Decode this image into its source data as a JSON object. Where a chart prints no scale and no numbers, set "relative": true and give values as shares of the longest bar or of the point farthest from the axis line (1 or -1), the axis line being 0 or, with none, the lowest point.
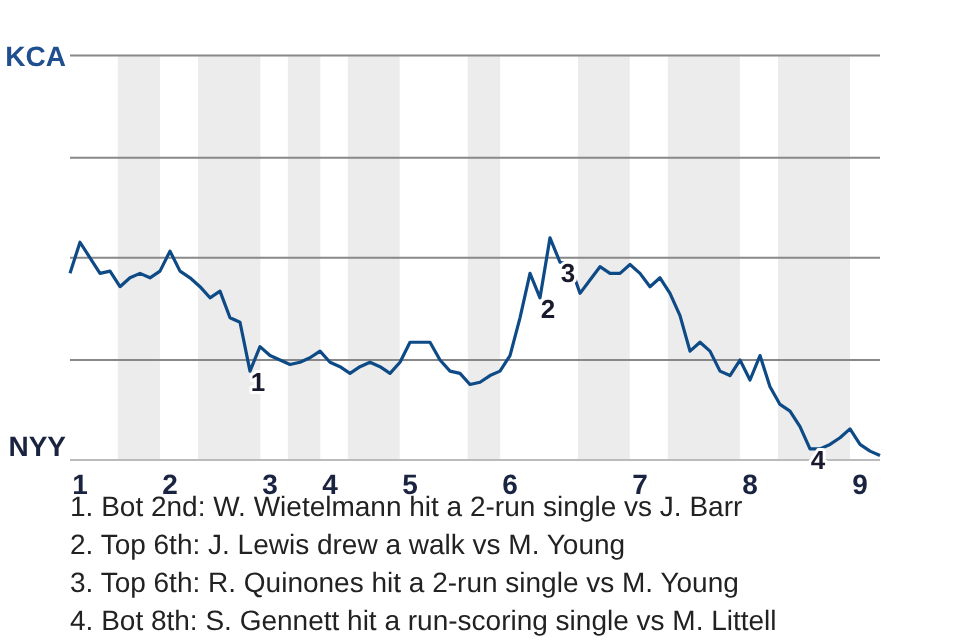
{
  "chart_data": {
    "type": "line",
    "relative": true,
    "categories": [
      null,
      "1",
      null,
      null,
      null,
      null,
      null,
      null,
      null,
      null,
      "2",
      null,
      null,
      null,
      null,
      null,
      null,
      null,
      null,
      null,
      "3",
      null,
      null,
      null,
      null,
      null,
      "4",
      null,
      null,
      null,
      null,
      null,
      null,
      null,
      "5",
      null,
      null,
      null,
      null,
      null,
      null,
      null,
      null,
      null,
      "6",
      null,
      null,
      null,
      null,
      null,
      null,
      null,
      null,
      null,
      null,
      null,
      null,
      "7",
      null,
      null,
      null,
      null,
      null,
      null,
      null,
      null,
      null,
      null,
      "8",
      null,
      null,
      null,
      null,
      null,
      null,
      null,
      null,
      null,
      null,
      "9",
      null,
      null
    ],
    "marker": "none",
    "line_style": "solid",
    "ref_lines": [
      {
        "axis": "y",
        "value": 0.45,
        "color": "#888888"
      },
      {
        "axis": "y",
        "value": 0.91,
        "color": "#888888"
      },
      {
        "axis": "y",
        "value": 1.36,
        "color": "#888888"
      },
      {
        "axis": "y",
        "value": 1.82,
        "color": "#888888"
      }
    ],
    "series": [
      {
        "color": "#0d4a86",
        "values": [
          0.84,
          0.98,
          0.91,
          0.84,
          0.85,
          0.78,
          0.82,
          0.84,
          0.82,
          0.85,
          0.94,
          0.85,
          0.82,
          0.78,
          0.73,
          0.76,
          0.64,
          0.62,
          0.4,
          0.51,
          0.47,
          0.45,
          0.43,
          0.44,
          0.46,
          0.49,
          0.44,
          0.42,
          0.39,
          0.42,
          0.44,
          0.42,
          0.39,
          0.44,
          0.53,
          0.53,
          0.53,
          0.45,
          0.4,
          0.39,
          0.34,
          0.35,
          0.38,
          0.4,
          0.47,
          0.64,
          0.84,
          0.73,
          1,
          0.89,
          0.88,
          0.75,
          0.81,
          0.87,
          0.84,
          0.84,
          0.88,
          0.84,
          0.78,
          0.82,
          0.75,
          0.65,
          0.49,
          0.53,
          0.49,
          0.4,
          0.38,
          0.45,
          0.36,
          0.47,
          0.33,
          0.25,
          0.22,
          0.15,
          0.05,
          0.05,
          0.07,
          0.1,
          0.14,
          0.07,
          0.04,
          0.02
        ]
      }
    ],
    "annotations": [
      {
        "text": "1",
        "y": 0.4
      },
      {
        "text": "2",
        "y": 0.73
      },
      {
        "text": "3",
        "y": 0.89
      },
      {
        "text": "4",
        "y": 0.05
      },
      "KCA",
      "NYY",
      "1. Bot 2nd: W. Wietelmann hit a 2-run single vs J. Barr",
      "2. Top 6th: J. Lewis drew a walk vs M. Young",
      "3. Top 6th: R. Quinones hit a 2-run single vs M. Young",
      "4. Bot 8th: S. Gennett hit a run-scoring single vs M. Littell"
    ]
  }
}
